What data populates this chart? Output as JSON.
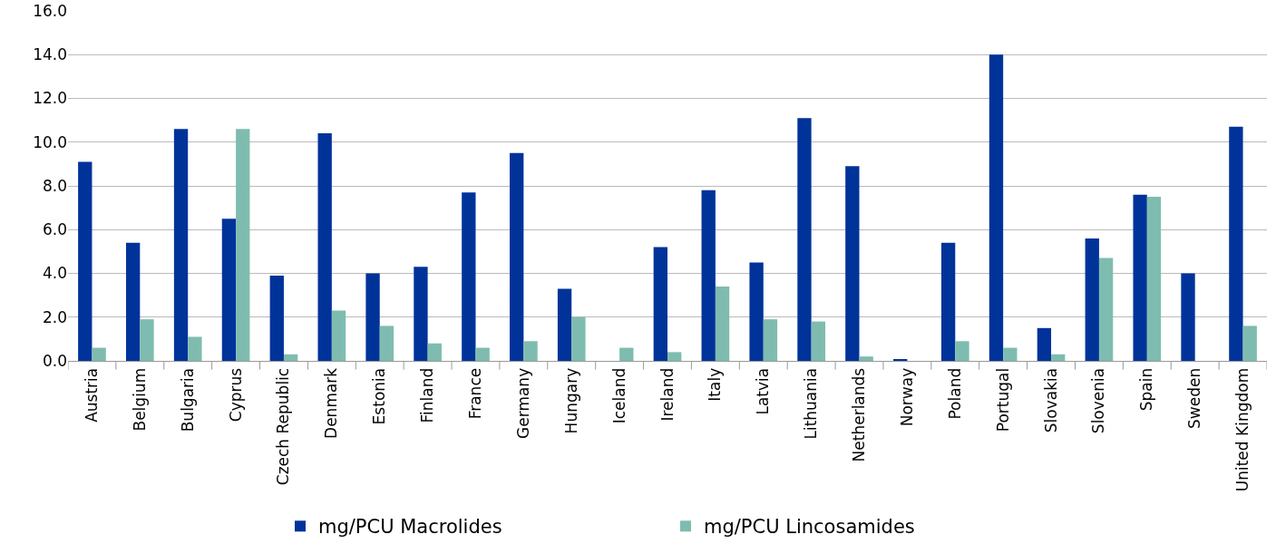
{
  "chart_data": {
    "type": "bar",
    "categories": [
      "Austria",
      "Belgium",
      "Bulgaria",
      "Cyprus",
      "Czech Republic",
      "Denmark",
      "Estonia",
      "Finland",
      "France",
      "Germany",
      "Hungary",
      "Iceland",
      "Ireland",
      "Italy",
      "Latvia",
      "Lithuania",
      "Netherlands",
      "Norway",
      "Poland",
      "Portugal",
      "Slovakia",
      "Slovenia",
      "Spain",
      "Sweden",
      "United Kingdom"
    ],
    "series": [
      {
        "name": "mg/PCU Macrolides",
        "color": "#003399",
        "values": [
          9.1,
          5.4,
          10.6,
          6.5,
          3.9,
          10.4,
          4.0,
          4.3,
          7.7,
          9.5,
          3.3,
          null,
          5.2,
          7.8,
          4.5,
          11.1,
          8.9,
          0.05,
          5.4,
          14.0,
          1.5,
          5.6,
          7.6,
          4.0,
          10.7
        ]
      },
      {
        "name": "mg/PCU Lincosamides",
        "color": "#7fbcb0",
        "values": [
          0.6,
          1.9,
          1.1,
          10.6,
          0.3,
          2.3,
          1.6,
          0.8,
          0.6,
          0.9,
          2.0,
          0.6,
          0.4,
          3.4,
          1.9,
          1.8,
          0.2,
          null,
          0.9,
          0.6,
          0.3,
          4.7,
          7.5,
          null,
          1.6
        ]
      }
    ],
    "ylim": [
      0,
      16
    ],
    "yticks": [
      {
        "value": 0,
        "label": "0.0"
      },
      {
        "value": 2,
        "label": "2.0"
      },
      {
        "value": 4,
        "label": "4.0"
      },
      {
        "value": 6,
        "label": "6.0"
      },
      {
        "value": 8,
        "label": "8.0"
      },
      {
        "value": 10,
        "label": "10.0"
      },
      {
        "value": 12,
        "label": "12.0"
      },
      {
        "value": 14,
        "label": "14.0"
      },
      {
        "value": 16,
        "label": "16.0"
      }
    ],
    "grid": "y",
    "legend": "bottom"
  }
}
